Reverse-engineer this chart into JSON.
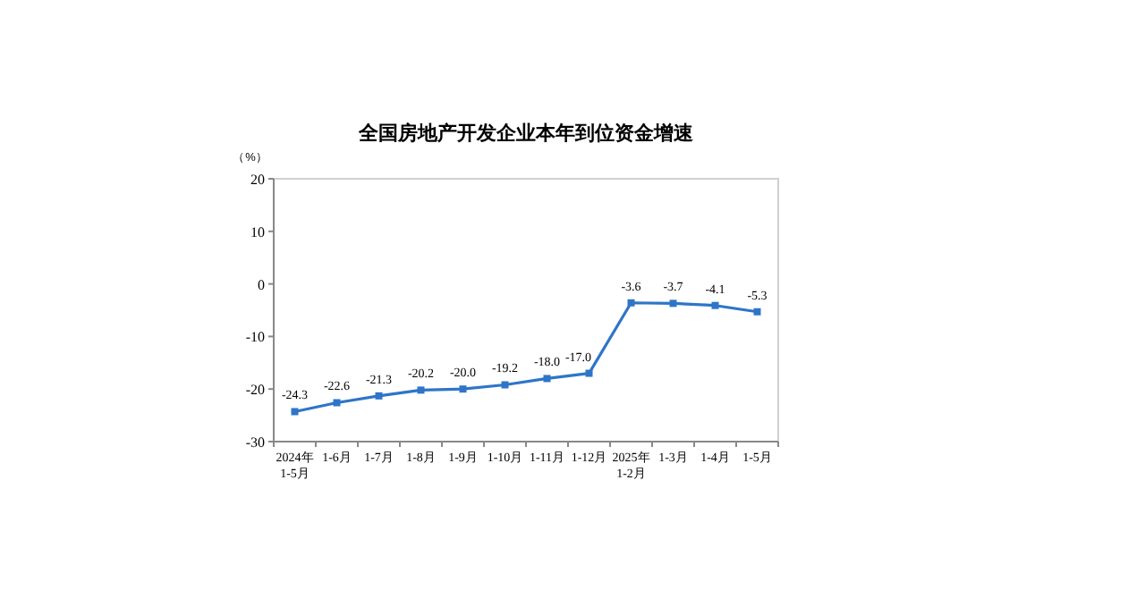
{
  "chart_data": {
    "type": "line",
    "title": "全国房地产开发企业本年到位资金增速",
    "ylabel": "（%）",
    "categories": [
      "2024年\n1-5月",
      "1-6月",
      "1-7月",
      "1-8月",
      "1-9月",
      "1-10月",
      "1-11月",
      "1-12月",
      "2025年\n1-2月",
      "1-3月",
      "1-4月",
      "1-5月"
    ],
    "series": [
      {
        "color": "#2e75c8",
        "values": [
          -24.3,
          -22.6,
          -21.3,
          -20.2,
          -20.0,
          -19.2,
          -18.0,
          -17.0,
          -3.6,
          -3.7,
          -4.1,
          -5.3
        ],
        "value_labels": [
          "-24.3",
          "-22.6",
          "-21.3",
          "-20.2",
          "-20.0",
          "-19.2",
          "-18.0",
          "-17.0",
          "-3.6",
          "-3.7",
          "-4.1",
          "-5.3"
        ]
      }
    ],
    "ylim": [
      -30,
      20
    ],
    "yticks": [
      -30,
      -20,
      -10,
      0,
      10,
      20
    ],
    "marker": "square",
    "grid": false
  }
}
